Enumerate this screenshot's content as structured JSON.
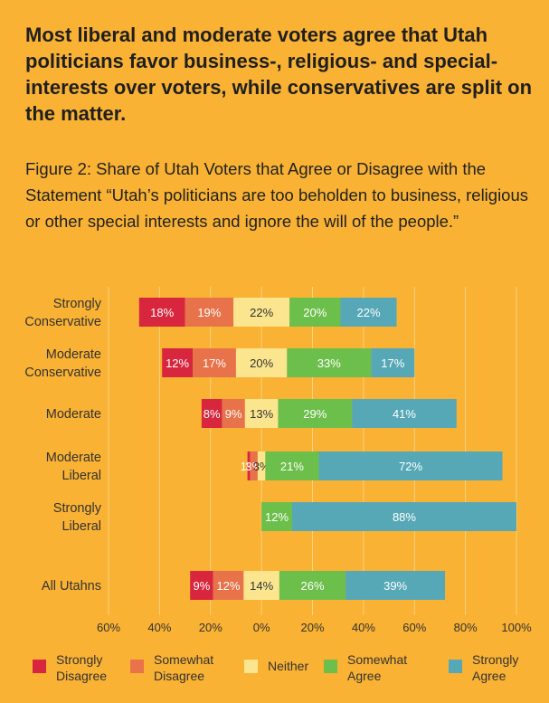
{
  "header": {
    "title": "Most liberal and moderate voters agree that Utah politicians favor business-, religious- and special-interests over voters, while conservatives are split on the matter.",
    "subtitle": "Figure 2: Share of Utah Voters that Agree or Disagree with the Statement “Utah’s politicians are too beholden to business, religious or other special interests and ignore the will of the people.”"
  },
  "chart_data": {
    "type": "bar",
    "orientation": "horizontal",
    "stacking": "diverging",
    "categories": [
      [
        "Strongly",
        "Conservative"
      ],
      [
        "Moderate",
        "Conservative"
      ],
      [
        "Moderate"
      ],
      [
        "Moderate",
        "Liberal"
      ],
      [
        "Strongly",
        "Liberal"
      ],
      [
        "All Utahns"
      ]
    ],
    "x_ticks": [
      "60%",
      "40%",
      "20%",
      "0%",
      "20%",
      "40%",
      "60%",
      "80%",
      "100%"
    ],
    "x_tick_values": [
      -60,
      -40,
      -20,
      0,
      20,
      40,
      60,
      80,
      100
    ],
    "xlim": [
      -60,
      100
    ],
    "grid": true,
    "legend_position": "bottom",
    "series": [
      {
        "name": [
          "Strongly",
          "Disagree"
        ],
        "color": "#d7263d",
        "side": "negative",
        "values": [
          18,
          12,
          8,
          1,
          0,
          9
        ],
        "labels": [
          "18%",
          "12%",
          "8%",
          "1%",
          "",
          "9%"
        ]
      },
      {
        "name": [
          "Somewhat",
          "Disagree"
        ],
        "color": "#e8734a",
        "side": "negative",
        "values": [
          19,
          17,
          9,
          3,
          0,
          12
        ],
        "labels": [
          "19%",
          "17%",
          "9%",
          "3%",
          "",
          "12%"
        ]
      },
      {
        "name": [
          "Neither"
        ],
        "color": "#fbe68f",
        "side": "center",
        "values": [
          22,
          20,
          13,
          3,
          0,
          14
        ],
        "labels": [
          "22%",
          "20%",
          "13%",
          "3%",
          "",
          "14%"
        ]
      },
      {
        "name": [
          "Somewhat",
          "Agree"
        ],
        "color": "#6cbf4b",
        "side": "positive",
        "values": [
          20,
          33,
          29,
          21,
          12,
          26
        ],
        "labels": [
          "20%",
          "33%",
          "29%",
          "21%",
          "12%",
          "26%"
        ]
      },
      {
        "name": [
          "Strongly",
          "Agree"
        ],
        "color": "#56a8b6",
        "side": "positive",
        "values": [
          22,
          17,
          41,
          72,
          88,
          39
        ],
        "labels": [
          "22%",
          "17%",
          "41%",
          "72%",
          "88%",
          "39%"
        ]
      }
    ],
    "colors": {
      "background": "#f9b233",
      "grid": "#fbd27f",
      "label_light": "#ffffff",
      "label_dark": "#333333"
    }
  }
}
